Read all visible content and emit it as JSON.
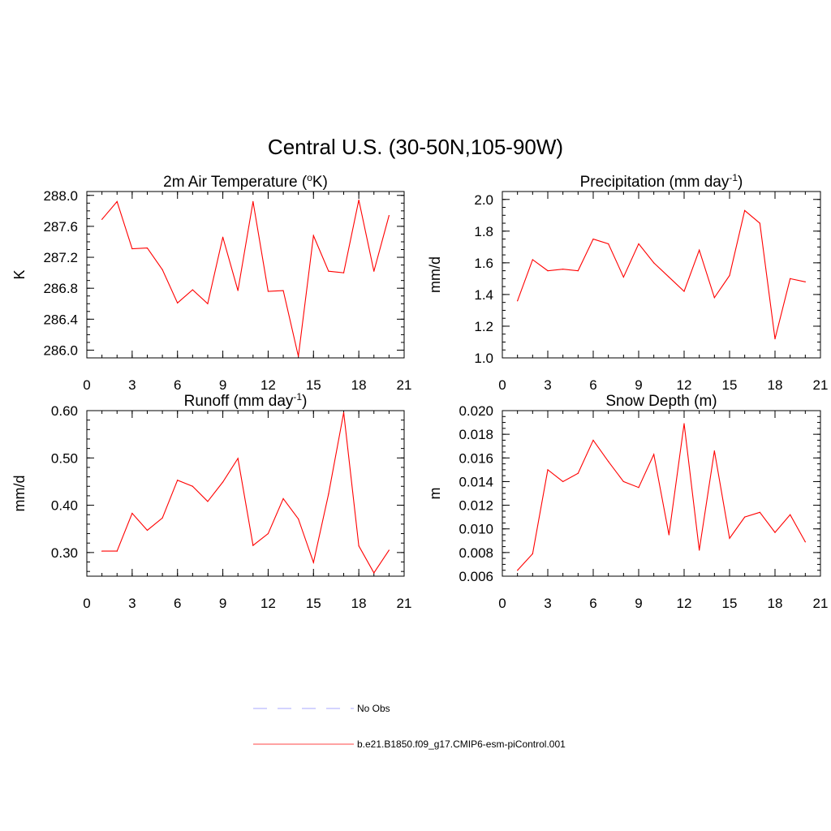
{
  "figure": {
    "title": "Central U.S. (30-50N,105-90W)"
  },
  "chart_data": [
    {
      "type": "line",
      "title": "2m Air Temperature (°K)",
      "title_parts": {
        "pre": "2m Air Temperature (",
        "sup": "o",
        "post": "K)"
      },
      "xlabel": "",
      "ylabel": "K",
      "xlim": [
        0,
        21
      ],
      "ylim": [
        285.9,
        288.05
      ],
      "xticks": [
        0,
        3,
        6,
        9,
        12,
        15,
        18,
        21
      ],
      "yticks": [
        286.0,
        286.4,
        286.8,
        287.2,
        287.6,
        288.0
      ],
      "ytick_labels": [
        "286.0",
        "286.4",
        "286.8",
        "287.2",
        "287.6",
        "288.0"
      ],
      "x_minor_step": 1,
      "y_minor_step": 0.1,
      "series": [
        {
          "name": "b.e21.B1850.f09_g17.CMIP6-esm-piControl.001",
          "color": "#ff0000",
          "x": [
            1,
            2,
            3,
            4,
            5,
            6,
            7,
            8,
            9,
            10,
            11,
            12,
            13,
            14,
            15,
            16,
            17,
            18,
            19,
            20
          ],
          "values": [
            287.69,
            287.92,
            287.31,
            287.32,
            287.04,
            286.61,
            286.78,
            286.6,
            287.46,
            286.77,
            287.92,
            286.76,
            286.77,
            285.92,
            287.48,
            287.02,
            287.0,
            287.94,
            287.02,
            287.74
          ]
        }
      ]
    },
    {
      "type": "line",
      "title": "Precipitation (mm day-1)",
      "title_parts": {
        "pre": "Precipitation (mm day",
        "sup": "-1",
        "post": ")"
      },
      "xlabel": "",
      "ylabel": "mm/d",
      "xlim": [
        0,
        21
      ],
      "ylim": [
        1.0,
        2.05
      ],
      "xticks": [
        0,
        3,
        6,
        9,
        12,
        15,
        18,
        21
      ],
      "yticks": [
        1.0,
        1.2,
        1.4,
        1.6,
        1.8,
        2.0
      ],
      "ytick_labels": [
        "1.0",
        "1.2",
        "1.4",
        "1.6",
        "1.8",
        "2.0"
      ],
      "x_minor_step": 1,
      "y_minor_step": 0.05,
      "series": [
        {
          "name": "b.e21.B1850.f09_g17.CMIP6-esm-piControl.001",
          "color": "#ff0000",
          "x": [
            1,
            2,
            3,
            4,
            5,
            6,
            7,
            8,
            9,
            10,
            11,
            12,
            13,
            14,
            15,
            16,
            17,
            18,
            19,
            20
          ],
          "values": [
            1.36,
            1.62,
            1.55,
            1.56,
            1.55,
            1.75,
            1.72,
            1.51,
            1.72,
            1.6,
            1.51,
            1.42,
            1.68,
            1.38,
            1.52,
            1.93,
            1.85,
            1.12,
            1.5,
            1.48
          ]
        }
      ]
    },
    {
      "type": "line",
      "title": "Runoff (mm day-1)",
      "title_parts": {
        "pre": "Runoff (mm day",
        "sup": "-1",
        "post": ")"
      },
      "xlabel": "",
      "ylabel": "mm/d",
      "xlim": [
        0,
        21
      ],
      "ylim": [
        0.25,
        0.6
      ],
      "xticks": [
        0,
        3,
        6,
        9,
        12,
        15,
        18,
        21
      ],
      "yticks": [
        0.3,
        0.4,
        0.5,
        0.6
      ],
      "ytick_labels": [
        "0.30",
        "0.40",
        "0.50",
        "0.60"
      ],
      "x_minor_step": 1,
      "y_minor_step": 0.02,
      "series": [
        {
          "name": "b.e21.B1850.f09_g17.CMIP6-esm-piControl.001",
          "color": "#ff0000",
          "x": [
            1,
            2,
            3,
            4,
            5,
            6,
            7,
            8,
            9,
            10,
            11,
            12,
            13,
            14,
            15,
            16,
            17,
            18,
            19,
            20
          ],
          "values": [
            0.303,
            0.303,
            0.383,
            0.347,
            0.373,
            0.453,
            0.44,
            0.408,
            0.449,
            0.499,
            0.315,
            0.34,
            0.414,
            0.371,
            0.279,
            0.424,
            0.596,
            0.314,
            0.257,
            0.305
          ]
        }
      ]
    },
    {
      "type": "line",
      "title": "Snow Depth (m)",
      "title_parts": {
        "pre": "Snow Depth (m)",
        "sup": "",
        "post": ""
      },
      "xlabel": "",
      "ylabel": "m",
      "xlim": [
        0,
        21
      ],
      "ylim": [
        0.006,
        0.02
      ],
      "xticks": [
        0,
        3,
        6,
        9,
        12,
        15,
        18,
        21
      ],
      "yticks": [
        0.006,
        0.008,
        0.01,
        0.012,
        0.014,
        0.016,
        0.018,
        0.02
      ],
      "ytick_labels": [
        "0.006",
        "0.008",
        "0.010",
        "0.012",
        "0.014",
        "0.016",
        "0.018",
        "0.020"
      ],
      "x_minor_step": 1,
      "y_minor_step": 0.0005,
      "series": [
        {
          "name": "b.e21.B1850.f09_g17.CMIP6-esm-piControl.001",
          "color": "#ff0000",
          "x": [
            1,
            2,
            3,
            4,
            5,
            6,
            7,
            8,
            9,
            10,
            11,
            12,
            13,
            14,
            15,
            16,
            17,
            18,
            19,
            20
          ],
          "values": [
            0.0065,
            0.0079,
            0.015,
            0.014,
            0.0147,
            0.0175,
            0.0157,
            0.014,
            0.0135,
            0.0163,
            0.0095,
            0.0189,
            0.0082,
            0.0166,
            0.0092,
            0.011,
            0.0114,
            0.0097,
            0.0112,
            0.0089
          ]
        }
      ]
    }
  ],
  "legend": {
    "position": "bottom-center",
    "items": [
      {
        "label": "No Obs",
        "color": "#aaaaff",
        "style": "dashed"
      },
      {
        "label": "b.e21.B1850.f09_g17.CMIP6-esm-piControl.001",
        "color": "#ff4444",
        "style": "solid"
      }
    ]
  }
}
